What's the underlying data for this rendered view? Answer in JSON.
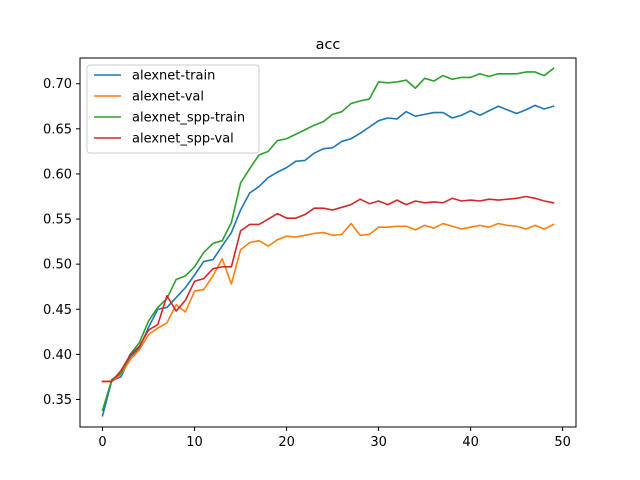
{
  "chart_data": {
    "type": "line",
    "title": "acc",
    "xlabel": "",
    "ylabel": "",
    "xlim": [
      -2.45,
      51.45
    ],
    "ylim": [
      0.3195,
      0.7285
    ],
    "xticks": [
      0,
      10,
      20,
      30,
      40,
      50
    ],
    "yticks": [
      0.35,
      0.4,
      0.45,
      0.5,
      0.55,
      0.6,
      0.65,
      0.7
    ],
    "grid": false,
    "legend_position": "upper-left",
    "x": [
      0,
      1,
      2,
      3,
      4,
      5,
      6,
      7,
      8,
      9,
      10,
      11,
      12,
      13,
      14,
      15,
      16,
      17,
      18,
      19,
      20,
      21,
      22,
      23,
      24,
      25,
      26,
      27,
      28,
      29,
      30,
      31,
      32,
      33,
      34,
      35,
      36,
      37,
      38,
      39,
      40,
      41,
      42,
      43,
      44,
      45,
      46,
      47,
      48,
      49
    ],
    "series": [
      {
        "name": "alexnet-train",
        "color": "#1f77b4",
        "values": [
          0.332,
          0.371,
          0.375,
          0.397,
          0.407,
          0.43,
          0.45,
          0.452,
          0.463,
          0.474,
          0.488,
          0.503,
          0.505,
          0.52,
          0.535,
          0.56,
          0.579,
          0.586,
          0.596,
          0.602,
          0.607,
          0.614,
          0.615,
          0.623,
          0.628,
          0.629,
          0.636,
          0.639,
          0.645,
          0.652,
          0.659,
          0.662,
          0.661,
          0.669,
          0.664,
          0.666,
          0.668,
          0.668,
          0.662,
          0.665,
          0.67,
          0.665,
          0.67,
          0.675,
          0.671,
          0.667,
          0.671,
          0.676,
          0.672,
          0.675
        ]
      },
      {
        "name": "alexnet-val",
        "color": "#ff7f0e",
        "values": [
          0.37,
          0.37,
          0.378,
          0.394,
          0.405,
          0.422,
          0.429,
          0.435,
          0.455,
          0.447,
          0.47,
          0.472,
          0.487,
          0.506,
          0.478,
          0.516,
          0.524,
          0.526,
          0.52,
          0.527,
          0.531,
          0.53,
          0.532,
          0.534,
          0.535,
          0.532,
          0.533,
          0.545,
          0.532,
          0.533,
          0.541,
          0.541,
          0.542,
          0.542,
          0.538,
          0.543,
          0.54,
          0.545,
          0.542,
          0.539,
          0.541,
          0.543,
          0.541,
          0.545,
          0.543,
          0.542,
          0.539,
          0.543,
          0.539,
          0.544
        ]
      },
      {
        "name": "alexnet_spp-train",
        "color": "#2ca02c",
        "values": [
          0.338,
          0.372,
          0.379,
          0.4,
          0.413,
          0.437,
          0.452,
          0.462,
          0.483,
          0.487,
          0.497,
          0.513,
          0.523,
          0.526,
          0.546,
          0.59,
          0.606,
          0.621,
          0.625,
          0.637,
          0.639,
          0.644,
          0.649,
          0.654,
          0.658,
          0.666,
          0.669,
          0.678,
          0.681,
          0.683,
          0.702,
          0.701,
          0.702,
          0.704,
          0.695,
          0.706,
          0.703,
          0.709,
          0.705,
          0.707,
          0.707,
          0.711,
          0.708,
          0.711,
          0.711,
          0.711,
          0.713,
          0.713,
          0.709,
          0.717
        ]
      },
      {
        "name": "alexnet_spp-val",
        "color": "#d62728",
        "values": [
          0.37,
          0.37,
          0.382,
          0.399,
          0.409,
          0.427,
          0.433,
          0.465,
          0.448,
          0.46,
          0.481,
          0.484,
          0.495,
          0.497,
          0.497,
          0.537,
          0.544,
          0.544,
          0.55,
          0.556,
          0.551,
          0.551,
          0.555,
          0.562,
          0.562,
          0.56,
          0.563,
          0.566,
          0.572,
          0.567,
          0.57,
          0.566,
          0.571,
          0.566,
          0.57,
          0.568,
          0.569,
          0.568,
          0.573,
          0.57,
          0.571,
          0.57,
          0.572,
          0.571,
          0.572,
          0.573,
          0.575,
          0.573,
          0.57,
          0.568
        ]
      }
    ]
  }
}
